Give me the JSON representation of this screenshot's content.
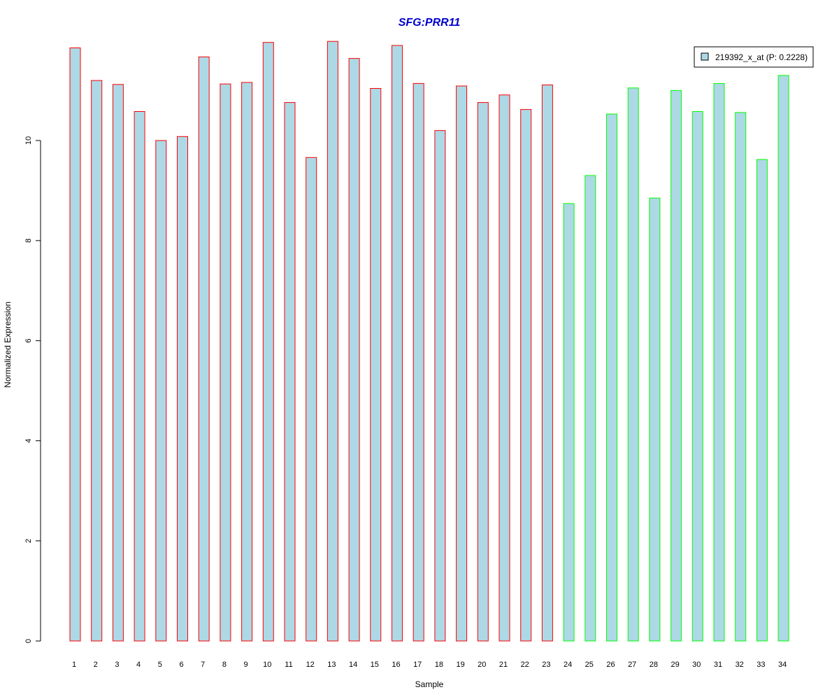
{
  "chart_data": {
    "type": "bar",
    "title": "SFG:PRR11",
    "xlabel": "Sample",
    "ylabel": "Normalized Expression",
    "ylim": [
      0,
      12
    ],
    "yticks": [
      0,
      2,
      4,
      6,
      8,
      10
    ],
    "grid": false,
    "legend": {
      "placement": "top-right",
      "entries": [
        "219392_x_at (P: 0.2228)"
      ]
    },
    "categories": [
      "1",
      "2",
      "3",
      "4",
      "5",
      "6",
      "7",
      "8",
      "9",
      "10",
      "11",
      "12",
      "13",
      "14",
      "15",
      "16",
      "17",
      "18",
      "19",
      "20",
      "21",
      "22",
      "23",
      "24",
      "25",
      "26",
      "27",
      "28",
      "29",
      "30",
      "31",
      "32",
      "33",
      "34"
    ],
    "series": [
      {
        "name": "219392_x_at (P: 0.2228)",
        "values": [
          11.85,
          11.2,
          11.12,
          10.58,
          10.0,
          10.08,
          11.67,
          11.13,
          11.16,
          11.96,
          10.76,
          9.66,
          11.98,
          11.64,
          11.04,
          11.9,
          11.14,
          10.2,
          11.09,
          10.76,
          10.91,
          10.62,
          11.11,
          8.74,
          9.3,
          10.53,
          11.05,
          8.85,
          11.0,
          10.58,
          11.14,
          10.56,
          9.62,
          11.3
        ],
        "groups": [
          "red",
          "red",
          "red",
          "red",
          "red",
          "red",
          "red",
          "red",
          "red",
          "red",
          "red",
          "red",
          "red",
          "red",
          "red",
          "red",
          "red",
          "red",
          "red",
          "red",
          "red",
          "red",
          "red",
          "green",
          "green",
          "green",
          "green",
          "green",
          "green",
          "green",
          "green",
          "green",
          "green",
          "green"
        ]
      }
    ],
    "colors": {
      "bar_fill": "#add8e6",
      "border_red": "#ff0000",
      "border_green": "#00ff00",
      "title": "#0000cd",
      "axis": "#000000"
    }
  }
}
